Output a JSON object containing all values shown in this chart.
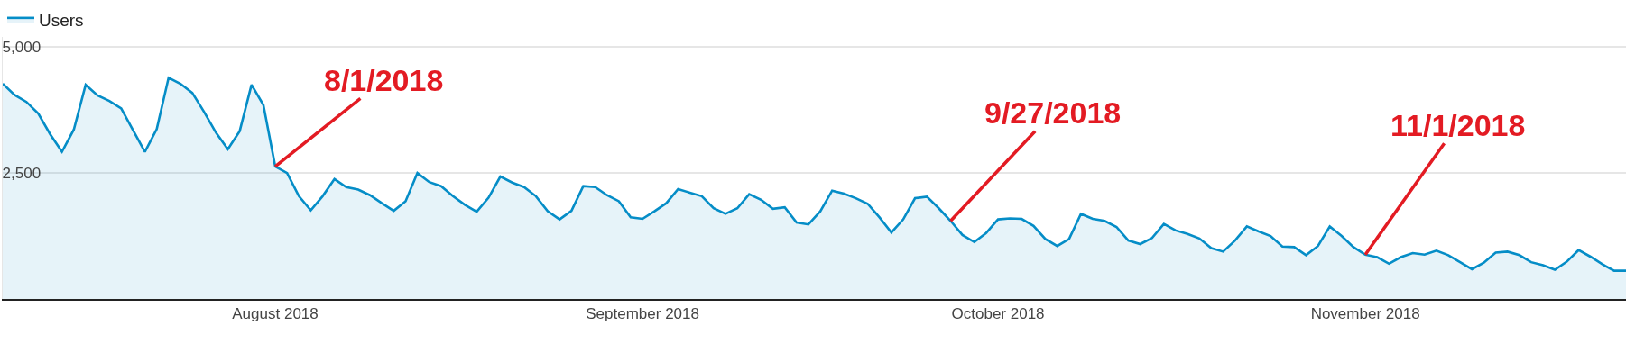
{
  "chart_data": {
    "type": "area",
    "x": [
      "2018-07-09",
      "2018-07-10",
      "2018-07-11",
      "2018-07-12",
      "2018-07-13",
      "2018-07-14",
      "2018-07-15",
      "2018-07-16",
      "2018-07-17",
      "2018-07-18",
      "2018-07-19",
      "2018-07-20",
      "2018-07-21",
      "2018-07-22",
      "2018-07-23",
      "2018-07-24",
      "2018-07-25",
      "2018-07-26",
      "2018-07-27",
      "2018-07-28",
      "2018-07-29",
      "2018-07-30",
      "2018-07-31",
      "2018-08-01",
      "2018-08-02",
      "2018-08-03",
      "2018-08-04",
      "2018-08-05",
      "2018-08-06",
      "2018-08-07",
      "2018-08-08",
      "2018-08-09",
      "2018-08-10",
      "2018-08-11",
      "2018-08-12",
      "2018-08-13",
      "2018-08-14",
      "2018-08-15",
      "2018-08-16",
      "2018-08-17",
      "2018-08-18",
      "2018-08-19",
      "2018-08-20",
      "2018-08-21",
      "2018-08-22",
      "2018-08-23",
      "2018-08-24",
      "2018-08-25",
      "2018-08-26",
      "2018-08-27",
      "2018-08-28",
      "2018-08-29",
      "2018-08-30",
      "2018-08-31",
      "2018-09-01",
      "2018-09-02",
      "2018-09-03",
      "2018-09-04",
      "2018-09-05",
      "2018-09-06",
      "2018-09-07",
      "2018-09-08",
      "2018-09-09",
      "2018-09-10",
      "2018-09-11",
      "2018-09-12",
      "2018-09-13",
      "2018-09-14",
      "2018-09-15",
      "2018-09-16",
      "2018-09-17",
      "2018-09-18",
      "2018-09-19",
      "2018-09-20",
      "2018-09-21",
      "2018-09-22",
      "2018-09-23",
      "2018-09-24",
      "2018-09-25",
      "2018-09-26",
      "2018-09-27",
      "2018-09-28",
      "2018-09-29",
      "2018-09-30",
      "2018-10-01",
      "2018-10-02",
      "2018-10-03",
      "2018-10-04",
      "2018-10-05",
      "2018-10-06",
      "2018-10-07",
      "2018-10-08",
      "2018-10-09",
      "2018-10-10",
      "2018-10-11",
      "2018-10-12",
      "2018-10-13",
      "2018-10-14",
      "2018-10-15",
      "2018-10-16",
      "2018-10-17",
      "2018-10-18",
      "2018-10-19",
      "2018-10-20",
      "2018-10-21",
      "2018-10-22",
      "2018-10-23",
      "2018-10-24",
      "2018-10-25",
      "2018-10-26",
      "2018-10-27",
      "2018-10-28",
      "2018-10-29",
      "2018-10-30",
      "2018-10-31",
      "2018-11-01",
      "2018-11-02",
      "2018-11-03",
      "2018-11-04",
      "2018-11-05",
      "2018-11-06",
      "2018-11-07",
      "2018-11-08",
      "2018-11-09",
      "2018-11-10",
      "2018-11-11",
      "2018-11-12",
      "2018-11-13",
      "2018-11-14",
      "2018-11-15",
      "2018-11-16",
      "2018-11-17",
      "2018-11-18",
      "2018-11-19",
      "2018-11-20",
      "2018-11-21",
      "2018-11-22",
      "2018-11-23"
    ],
    "series": [
      {
        "name": "Users",
        "color": "#058dc7",
        "values": [
          4270,
          4050,
          3910,
          3680,
          3270,
          2920,
          3360,
          4250,
          4040,
          3930,
          3780,
          3350,
          2920,
          3370,
          4390,
          4270,
          4090,
          3710,
          3300,
          2970,
          3330,
          4250,
          3850,
          2630,
          2500,
          2040,
          1760,
          2040,
          2380,
          2220,
          2170,
          2060,
          1900,
          1750,
          1940,
          2500,
          2320,
          2240,
          2040,
          1870,
          1730,
          2010,
          2430,
          2310,
          2220,
          2040,
          1740,
          1580,
          1750,
          2240,
          2220,
          2060,
          1940,
          1620,
          1590,
          1740,
          1900,
          2180,
          2110,
          2040,
          1800,
          1690,
          1800,
          2080,
          1970,
          1790,
          1820,
          1520,
          1480,
          1740,
          2150,
          2090,
          2000,
          1890,
          1620,
          1320,
          1580,
          2000,
          2030,
          1800,
          1550,
          1270,
          1130,
          1310,
          1580,
          1600,
          1590,
          1450,
          1190,
          1050,
          1190,
          1690,
          1590,
          1550,
          1430,
          1160,
          1090,
          1210,
          1490,
          1360,
          1290,
          1200,
          1010,
          940,
          1160,
          1440,
          1340,
          1250,
          1040,
          1030,
          870,
          1050,
          1440,
          1250,
          1030,
          880,
          830,
          700,
          830,
          910,
          880,
          960,
          870,
          730,
          590,
          720,
          920,
          940,
          870,
          730,
          670,
          580,
          740,
          970,
          840,
          690,
          560,
          560
        ]
      }
    ],
    "xlim": [
      "2018-07-09",
      "2018-11-23"
    ],
    "xticks": [
      {
        "value": "2018-08-01",
        "label": "August 2018"
      },
      {
        "value": "2018-09-01",
        "label": "September 2018"
      },
      {
        "value": "2018-10-01",
        "label": "October 2018"
      },
      {
        "value": "2018-11-01",
        "label": "November 2018"
      }
    ],
    "ylim": [
      0,
      5200
    ],
    "yticks": [
      {
        "value": 2500,
        "label": "2,500"
      },
      {
        "value": 5000,
        "label": "5,000"
      }
    ],
    "grid": "y",
    "legend": "top left",
    "annotations": [
      {
        "text": "8/1/2018",
        "x": "2018-08-01",
        "y": 2630
      },
      {
        "text": "9/27/2018",
        "x": "2018-09-27",
        "y": 1550
      },
      {
        "text": "11/1/2018",
        "x": "2018-11-01",
        "y": 880
      }
    ]
  }
}
